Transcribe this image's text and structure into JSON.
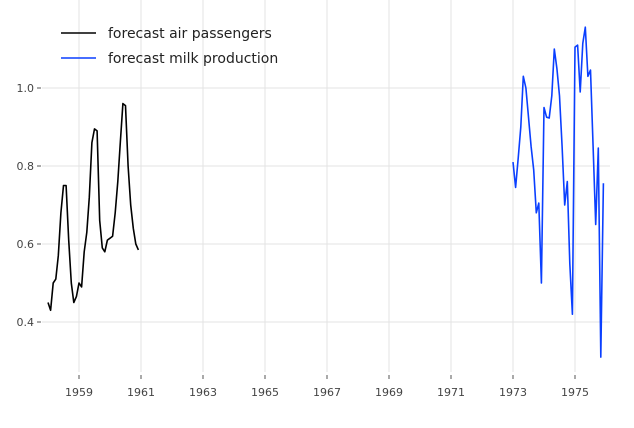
{
  "chart_data": {
    "type": "line",
    "title": "",
    "xlabel": "",
    "ylabel": "",
    "xlim": [
      1957.9,
      1976.0
    ],
    "ylim": [
      0.27,
      1.2
    ],
    "grid": true,
    "legend_position": "top-left",
    "x_ticks": [
      1959,
      1961,
      1963,
      1965,
      1967,
      1969,
      1971,
      1973,
      1975
    ],
    "x_tick_labels": [
      "1959",
      "1961",
      "1963",
      "1965",
      "1967",
      "1969",
      "1971",
      "1973",
      "1975"
    ],
    "y_ticks": [
      0.4,
      0.6,
      0.8,
      1.0
    ],
    "y_tick_labels": [
      "0.4",
      "0.6",
      "0.8",
      "1.0"
    ],
    "series": [
      {
        "name": "forecast air passengers",
        "color": "#000000",
        "start_year": 1958,
        "frequency": "monthly",
        "values": [
          0.45,
          0.43,
          0.5,
          0.51,
          0.57,
          0.68,
          0.75,
          0.75,
          0.61,
          0.5,
          0.45,
          0.465,
          0.5,
          0.49,
          0.58,
          0.63,
          0.72,
          0.86,
          0.895,
          0.89,
          0.66,
          0.59,
          0.58,
          0.61,
          0.615,
          0.62,
          0.68,
          0.76,
          0.86,
          0.96,
          0.955,
          0.8,
          0.7,
          0.64,
          0.6,
          0.585
        ]
      },
      {
        "name": "forecast milk production",
        "color": "#0a3fff",
        "start_year": 1973,
        "frequency": "monthly",
        "values": [
          0.81,
          0.745,
          0.82,
          0.9,
          1.03,
          1.0,
          0.925,
          0.85,
          0.79,
          0.68,
          0.705,
          0.5,
          0.95,
          0.925,
          0.923,
          0.98,
          1.1,
          1.05,
          0.98,
          0.85,
          0.7,
          0.76,
          0.55,
          0.42,
          1.105,
          1.11,
          0.99,
          1.115,
          1.156,
          1.03,
          1.046,
          0.85,
          0.65,
          0.846,
          0.31,
          0.756
        ]
      }
    ]
  }
}
